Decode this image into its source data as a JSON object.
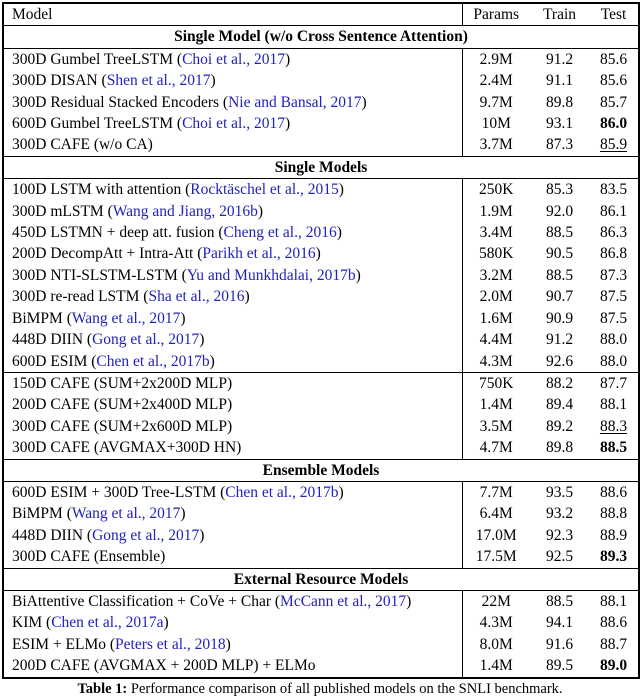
{
  "table": {
    "link_color": "#2222bb",
    "columns": [
      "Model",
      "Params",
      "Train",
      "Test"
    ],
    "sections": [
      {
        "title": "Single Model (w/o Cross Sentence Attention)",
        "rows": [
          {
            "prefix": "300D Gumbel TreeLSTM (",
            "cite": "Choi et al., 2017",
            "suffix": ")",
            "params": "2.9M",
            "train": "91.2",
            "test": "85.6",
            "test_style": "normal"
          },
          {
            "prefix": "300D DISAN (",
            "cite": "Shen et al., 2017",
            "suffix": ")",
            "params": "2.4M",
            "train": "91.1",
            "test": "85.6",
            "test_style": "normal"
          },
          {
            "prefix": "300D Residual Stacked Encoders (",
            "cite": "Nie and Bansal, 2017",
            "suffix": ")",
            "params": "9.7M",
            "train": "89.8",
            "test": "85.7",
            "test_style": "normal"
          },
          {
            "prefix": "600D Gumbel TreeLSTM (",
            "cite": "Choi et al., 2017",
            "suffix": ")",
            "params": "10M",
            "train": "93.1",
            "test": "86.0",
            "test_style": "bold"
          },
          {
            "prefix": "300D CAFE (w/o CA)",
            "cite": "",
            "suffix": "",
            "params": "3.7M",
            "train": "87.3",
            "test": "85.9",
            "test_style": "underline"
          }
        ]
      },
      {
        "title": "Single Models",
        "rows": [
          {
            "prefix": "100D LSTM with attention (",
            "cite": "Rocktäschel et al., 2015",
            "suffix": ")",
            "params": "250K",
            "train": "85.3",
            "test": "83.5",
            "test_style": "normal"
          },
          {
            "prefix": "300D mLSTM (",
            "cite": "Wang and Jiang, 2016b",
            "suffix": ")",
            "params": "1.9M",
            "train": "92.0",
            "test": "86.1",
            "test_style": "normal"
          },
          {
            "prefix": "450D LSTMN + deep att. fusion (",
            "cite": "Cheng et al., 2016",
            "suffix": ")",
            "params": "3.4M",
            "train": "88.5",
            "test": "86.3",
            "test_style": "normal"
          },
          {
            "prefix": "200D DecompAtt + Intra-Att (",
            "cite": "Parikh et al., 2016",
            "suffix": ")",
            "params": "580K",
            "train": "90.5",
            "test": "86.8",
            "test_style": "normal"
          },
          {
            "prefix": "300D NTI-SLSTM-LSTM (",
            "cite": "Yu and Munkhdalai, 2017b",
            "suffix": ")",
            "params": "3.2M",
            "train": "88.5",
            "test": "87.3",
            "test_style": "normal"
          },
          {
            "prefix": "300D re-read LSTM (",
            "cite": "Sha et al., 2016",
            "suffix": ")",
            "params": "2.0M",
            "train": "90.7",
            "test": "87.5",
            "test_style": "normal"
          },
          {
            "prefix": "BiMPM (",
            "cite": "Wang et al., 2017",
            "suffix": ")",
            "params": "1.6M",
            "train": "90.9",
            "test": "87.5",
            "test_style": "normal"
          },
          {
            "prefix": "448D DIIN (",
            "cite": "Gong et al., 2017",
            "suffix": ")",
            "params": "4.4M",
            "train": "91.2",
            "test": "88.0",
            "test_style": "normal"
          },
          {
            "prefix": "600D ESIM (",
            "cite": "Chen et al., 2017b",
            "suffix": ")",
            "params": "4.3M",
            "train": "92.6",
            "test": "88.0",
            "test_style": "normal"
          },
          {
            "prefix": "150D CAFE (SUM+2x200D MLP)",
            "cite": "",
            "suffix": "",
            "params": "750K",
            "train": "88.2",
            "test": "87.7",
            "test_style": "normal",
            "rule_above": true
          },
          {
            "prefix": "200D CAFE (SUM+2x400D MLP)",
            "cite": "",
            "suffix": "",
            "params": "1.4M",
            "train": "89.4",
            "test": "88.1",
            "test_style": "normal"
          },
          {
            "prefix": "300D CAFE (SUM+2x600D MLP)",
            "cite": "",
            "suffix": "",
            "params": "3.5M",
            "train": "89.2",
            "test": "88.3",
            "test_style": "underline"
          },
          {
            "prefix": "300D CAFE (AVGMAX+300D HN)",
            "cite": "",
            "suffix": "",
            "params": "4.7M",
            "train": "89.8",
            "test": "88.5",
            "test_style": "bold"
          }
        ]
      },
      {
        "title": "Ensemble Models",
        "rows": [
          {
            "prefix": "600D ESIM + 300D Tree-LSTM (",
            "cite": "Chen et al., 2017b",
            "suffix": ")",
            "params": "7.7M",
            "train": "93.5",
            "test": "88.6",
            "test_style": "normal"
          },
          {
            "prefix": "BiMPM (",
            "cite": "Wang et al., 2017",
            "suffix": ")",
            "params": "6.4M",
            "train": "93.2",
            "test": "88.8",
            "test_style": "normal"
          },
          {
            "prefix": "448D DIIN (",
            "cite": "Gong et al., 2017",
            "suffix": ")",
            "params": "17.0M",
            "train": "92.3",
            "test": "88.9",
            "test_style": "normal"
          },
          {
            "prefix": "300D CAFE (Ensemble)",
            "cite": "",
            "suffix": "",
            "params": "17.5M",
            "train": "92.5",
            "test": "89.3",
            "test_style": "bold"
          }
        ]
      },
      {
        "title": "External Resource Models",
        "rows": [
          {
            "prefix": "BiAttentive Classification + CoVe + Char (",
            "cite": "McCann et al., 2017",
            "suffix": ")",
            "params": "22M",
            "train": "88.5",
            "test": "88.1",
            "test_style": "normal"
          },
          {
            "prefix": "KIM (",
            "cite": "Chen et al., 2017a",
            "suffix": ")",
            "params": "4.3M",
            "train": "94.1",
            "test": "88.6",
            "test_style": "normal"
          },
          {
            "prefix": "ESIM + ELMo (",
            "cite": "Peters et al., 2018",
            "suffix": ")",
            "params": "8.0M",
            "train": "91.6",
            "test": "88.7",
            "test_style": "normal"
          },
          {
            "prefix": "200D CAFE (AVGMAX + 200D MLP) + ELMo",
            "cite": "",
            "suffix": "",
            "params": "1.4M",
            "train": "89.5",
            "test": "89.0",
            "test_style": "bold"
          }
        ]
      }
    ]
  },
  "caption": {
    "label": "Table 1:",
    "text": "Performance comparison of all published models on the SNLI benchmark."
  }
}
